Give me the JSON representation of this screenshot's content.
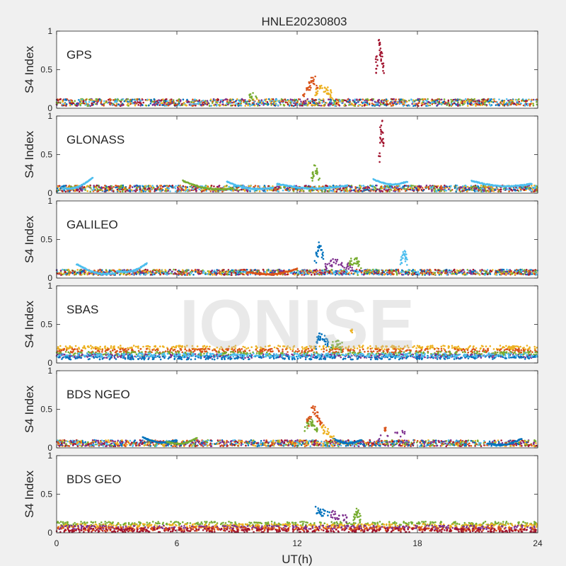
{
  "figure": {
    "title": "HNLE20230803",
    "watermark": "IONISE",
    "xlabel": "UT(h)",
    "ylabel": "S4 Index",
    "xticks": [
      0,
      6,
      12,
      18,
      24
    ],
    "xlim": [
      0,
      24
    ],
    "background": "#f0f0f0",
    "axes_background": "#ffffff",
    "series_colors": [
      "#0072BD",
      "#D95319",
      "#EDB120",
      "#7E2F8E",
      "#77AC30",
      "#4DBEEE",
      "#A2142F"
    ]
  },
  "chart_data": [
    {
      "type": "scatter",
      "title": "GPS",
      "xlabel": "",
      "ylabel": "S4 Index",
      "xlim": [
        0,
        24
      ],
      "ylim": [
        0,
        1
      ],
      "yticks": [
        0,
        0.5,
        1
      ],
      "grid": false,
      "baseline_range": [
        0.03,
        0.12
      ],
      "events": [
        {
          "color": 1,
          "x": [
            12.3,
            12.6,
            12.8,
            13.0
          ],
          "y": [
            0.18,
            0.28,
            0.42,
            0.22
          ]
        },
        {
          "color": 2,
          "x": [
            12.9,
            13.2,
            13.5,
            13.7
          ],
          "y": [
            0.18,
            0.28,
            0.22,
            0.17
          ]
        },
        {
          "color": 4,
          "x": [
            9.5,
            10.0
          ],
          "y": [
            0.18,
            0.15
          ]
        },
        {
          "color": 6,
          "x": [
            15.9,
            16.05,
            16.2,
            16.35
          ],
          "y": [
            0.38,
            0.9,
            0.65,
            0.42
          ]
        }
      ]
    },
    {
      "type": "scatter",
      "title": "GLONASS",
      "xlabel": "",
      "ylabel": "S4 Index",
      "xlim": [
        0,
        24
      ],
      "ylim": [
        0,
        1
      ],
      "yticks": [
        0,
        0.5,
        1
      ],
      "grid": false,
      "baseline_range": [
        0.02,
        0.1
      ],
      "arcs": [
        {
          "color": 5,
          "x0": 0.3,
          "x1": 1.8,
          "y0": 0.06,
          "y1": 0.2
        },
        {
          "color": 4,
          "x0": 6.3,
          "x1": 8.8,
          "y0": 0.16,
          "y1": 0.06
        },
        {
          "color": 5,
          "x0": 8.5,
          "x1": 10.8,
          "y0": 0.15,
          "y1": 0.07
        },
        {
          "color": 5,
          "x0": 11.0,
          "x1": 14.5,
          "y0": 0.12,
          "y1": 0.1
        },
        {
          "color": 5,
          "x0": 15.8,
          "x1": 17.5,
          "y0": 0.18,
          "y1": 0.15
        },
        {
          "color": 5,
          "x0": 20.7,
          "x1": 23.7,
          "y0": 0.16,
          "y1": 0.12
        }
      ],
      "events": [
        {
          "color": 4,
          "x": [
            12.7,
            12.9,
            13.1
          ],
          "y": [
            0.15,
            0.33,
            0.2
          ]
        },
        {
          "color": 6,
          "x": [
            16.1,
            16.2,
            16.3
          ],
          "y": [
            0.38,
            0.9,
            0.6
          ]
        }
      ]
    },
    {
      "type": "scatter",
      "title": "GALILEO",
      "xlabel": "",
      "ylabel": "S4 Index",
      "xlim": [
        0,
        24
      ],
      "ylim": [
        0,
        1
      ],
      "yticks": [
        0,
        0.5,
        1
      ],
      "grid": false,
      "baseline_range": [
        0.04,
        0.11
      ],
      "arcs": [
        {
          "color": 5,
          "x0": 1.0,
          "x1": 2.9,
          "y0": 0.18,
          "y1": 0.06
        },
        {
          "color": 5,
          "x0": 3.0,
          "x1": 4.5,
          "y0": 0.09,
          "y1": 0.19
        },
        {
          "color": 1,
          "x0": 9.5,
          "x1": 12.0,
          "y0": 0.08,
          "y1": 0.12
        }
      ],
      "events": [
        {
          "color": 0,
          "x": [
            12.9,
            13.1,
            13.3
          ],
          "y": [
            0.2,
            0.42,
            0.25
          ]
        },
        {
          "color": 3,
          "x": [
            13.4,
            13.8,
            14.3,
            14.8
          ],
          "y": [
            0.15,
            0.2,
            0.17,
            0.13
          ]
        },
        {
          "color": 4,
          "x": [
            14.6,
            14.9,
            15.2
          ],
          "y": [
            0.2,
            0.23,
            0.15
          ]
        },
        {
          "color": 5,
          "x": [
            17.2,
            17.35,
            17.5
          ],
          "y": [
            0.2,
            0.35,
            0.18
          ]
        }
      ]
    },
    {
      "type": "scatter",
      "title": "SBAS",
      "xlabel": "",
      "ylabel": "S4 Index",
      "xlim": [
        0,
        24
      ],
      "ylim": [
        0,
        1
      ],
      "yticks": [
        0,
        0.5,
        1
      ],
      "grid": false,
      "bands": [
        {
          "color": 2,
          "y": 0.2
        },
        {
          "color": 1,
          "y": 0.16
        },
        {
          "color": 4,
          "y": 0.12
        },
        {
          "color": 3,
          "y": 0.09
        },
        {
          "color": 0,
          "y": 0.07
        },
        {
          "color": 5,
          "y": 0.1
        }
      ],
      "events": [
        {
          "color": 0,
          "x": [
            12.9,
            13.1,
            13.4,
            13.7
          ],
          "y": [
            0.22,
            0.35,
            0.3,
            0.2
          ]
        },
        {
          "color": 4,
          "x": [
            13.6,
            14.0,
            14.3
          ],
          "y": [
            0.22,
            0.25,
            0.2
          ]
        },
        {
          "color": 2,
          "x": [
            14.7
          ],
          "y": [
            0.42
          ]
        }
      ]
    },
    {
      "type": "scatter",
      "title": "BDS NGEO",
      "xlabel": "",
      "ylabel": "S4 Index",
      "xlim": [
        0,
        24
      ],
      "ylim": [
        0,
        1
      ],
      "yticks": [
        0,
        0.5,
        1
      ],
      "grid": false,
      "baseline_range": [
        0.02,
        0.1
      ],
      "arcs": [
        {
          "color": 0,
          "x0": 4.3,
          "x1": 6.0,
          "y0": 0.14,
          "y1": 0.1
        },
        {
          "color": 4,
          "x0": 5.5,
          "x1": 7.0,
          "y0": 0.08,
          "y1": 0.13
        },
        {
          "color": 0,
          "x0": 13.8,
          "x1": 15.2,
          "y0": 0.12,
          "y1": 0.1
        },
        {
          "color": 0,
          "x0": 21.5,
          "x1": 23.2,
          "y0": 0.06,
          "y1": 0.12
        }
      ],
      "events": [
        {
          "color": 4,
          "x": [
            12.4,
            12.6,
            12.8,
            13.0
          ],
          "y": [
            0.22,
            0.35,
            0.3,
            0.2
          ]
        },
        {
          "color": 1,
          "x": [
            12.5,
            12.8,
            13.0,
            13.3
          ],
          "y": [
            0.3,
            0.52,
            0.42,
            0.25
          ]
        },
        {
          "color": 2,
          "x": [
            13.2,
            13.5,
            13.8
          ],
          "y": [
            0.25,
            0.2,
            0.15
          ]
        },
        {
          "color": 3,
          "x": [
            16.1,
            17.9
          ],
          "y": [
            0.13,
            0.22
          ]
        },
        {
          "color": 1,
          "x": [
            16.4
          ],
          "y": [
            0.24
          ]
        }
      ]
    },
    {
      "type": "scatter",
      "title": "BDS GEO",
      "xlabel": "",
      "ylabel": "S4 Index",
      "xlim": [
        0,
        24
      ],
      "ylim": [
        0,
        1
      ],
      "yticks": [
        0,
        0.5,
        1
      ],
      "grid": false,
      "bands": [
        {
          "color": 4,
          "y": 0.12
        },
        {
          "color": 2,
          "y": 0.09
        },
        {
          "color": 3,
          "y": 0.07
        },
        {
          "color": 1,
          "y": 0.05
        },
        {
          "color": 6,
          "y": 0.03
        }
      ],
      "events": [
        {
          "color": 0,
          "x": [
            12.9,
            13.2,
            13.6
          ],
          "y": [
            0.3,
            0.26,
            0.22
          ]
        },
        {
          "color": 3,
          "x": [
            13.7,
            14.1,
            14.5
          ],
          "y": [
            0.25,
            0.2,
            0.18
          ]
        },
        {
          "color": 4,
          "x": [
            14.8,
            15.0,
            15.2
          ],
          "y": [
            0.18,
            0.27,
            0.15
          ]
        }
      ]
    }
  ]
}
